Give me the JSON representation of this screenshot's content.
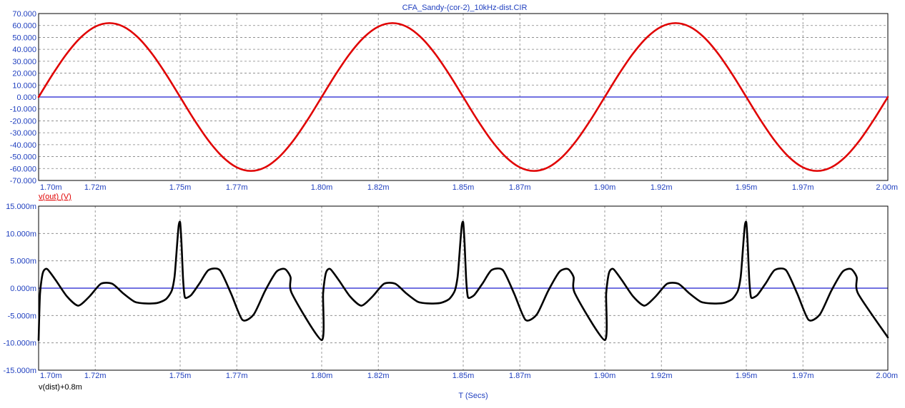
{
  "window": {
    "title": "CFA_Sandy-(cor-2)_10kHz-dist.CIR"
  },
  "colors": {
    "axis_text": "#1f3fbf",
    "grid": "#808080",
    "zero_line": "#1f1fcf",
    "frame": "#000000"
  },
  "chart_data": [
    {
      "type": "line",
      "title": "CFA_Sandy-(cor-2)_10kHz-dist.CIR",
      "xlabel": "",
      "ylabel": "v(out) (V)",
      "xlim": [
        0.0017,
        0.002
      ],
      "ylim": [
        -70,
        70
      ],
      "x_ticks": [
        0.0017,
        0.00172,
        0.00175,
        0.00177,
        0.0018,
        0.00182,
        0.00185,
        0.00187,
        0.0019,
        0.00192,
        0.00195,
        0.00197,
        0.002
      ],
      "x_tick_labels": [
        "1.70m",
        "1.72m",
        "1.75m",
        "1.77m",
        "1.80m",
        "1.82m",
        "1.85m",
        "1.87m",
        "1.90m",
        "1.92m",
        "1.95m",
        "1.97m",
        "2.00m"
      ],
      "y_ticks": [
        70,
        60,
        50,
        40,
        30,
        20,
        10,
        0,
        -10,
        -20,
        -30,
        -40,
        -50,
        -60,
        -70
      ],
      "y_tick_labels": [
        "70.000",
        "60.000",
        "50.000",
        "40.000",
        "30.000",
        "20.000",
        "10.000",
        "0.000",
        "-10.000",
        "-20.000",
        "-30.000",
        "-40.000",
        "-50.000",
        "-60.000",
        "-70.000"
      ],
      "grid": true,
      "legend": "none",
      "series": [
        {
          "name": "v(out) (V)",
          "color": "#e00000",
          "x": [
            0.0017,
            0.001705,
            0.00171,
            0.001715,
            0.00172,
            0.001725,
            0.00173,
            0.001735,
            0.00174,
            0.001745,
            0.00175,
            0.001755,
            0.00176,
            0.001765,
            0.00177,
            0.001775,
            0.00178,
            0.001785,
            0.00179,
            0.001795,
            0.0018,
            0.001805,
            0.00181,
            0.001815,
            0.00182,
            0.001825,
            0.00183,
            0.001835,
            0.00184,
            0.001845,
            0.00185,
            0.001855,
            0.00186,
            0.001865,
            0.00187,
            0.001875,
            0.00188,
            0.001885,
            0.00189,
            0.001895,
            0.0019,
            0.001905,
            0.00191,
            0.001915,
            0.00192,
            0.001925,
            0.00193,
            0.001935,
            0.00194,
            0.001945,
            0.00195,
            0.001955,
            0.00196,
            0.001965,
            0.00197,
            0.001975,
            0.00198,
            0.001985,
            0.00199,
            0.001995,
            0.002
          ],
          "y": [
            0,
            19.2,
            36.5,
            50.2,
            59.0,
            62.0,
            59.0,
            50.2,
            36.5,
            19.2,
            0,
            -19.2,
            -36.5,
            -50.2,
            -59.0,
            -62.0,
            -59.0,
            -50.2,
            -36.5,
            -19.2,
            0,
            19.2,
            36.5,
            50.2,
            59.0,
            62.0,
            59.0,
            50.2,
            36.5,
            19.2,
            0,
            -19.2,
            -36.5,
            -50.2,
            -59.0,
            -62.0,
            -59.0,
            -50.2,
            -36.5,
            -19.2,
            0,
            19.2,
            36.5,
            50.2,
            59.0,
            62.0,
            59.0,
            50.2,
            36.5,
            19.2,
            0,
            -19.2,
            -36.5,
            -50.2,
            -59.0,
            -62.0,
            -59.0,
            -50.2,
            -36.5,
            -19.2,
            0
          ]
        }
      ]
    },
    {
      "type": "line",
      "title": "",
      "xlabel": "T (Secs)",
      "ylabel": "v(dist)+0.8m",
      "xlim": [
        0.0017,
        0.002
      ],
      "ylim": [
        -0.015,
        0.015
      ],
      "x_ticks": [
        0.0017,
        0.00172,
        0.00175,
        0.00177,
        0.0018,
        0.00182,
        0.00185,
        0.00187,
        0.0019,
        0.00192,
        0.00195,
        0.00197,
        0.002
      ],
      "x_tick_labels": [
        "1.70m",
        "1.72m",
        "1.75m",
        "1.77m",
        "1.80m",
        "1.82m",
        "1.85m",
        "1.87m",
        "1.90m",
        "1.92m",
        "1.95m",
        "1.97m",
        "2.00m"
      ],
      "y_ticks": [
        0.015,
        0.01,
        0.005,
        0,
        -0.005,
        -0.01,
        -0.015
      ],
      "y_tick_labels": [
        "15.000m",
        "10.000m",
        "5.000m",
        "0.000m",
        "-5.000m",
        "-10.000m",
        "-15.000m"
      ],
      "grid": true,
      "legend": "none",
      "series": [
        {
          "name": "v(dist)+0.8m",
          "color": "#000000",
          "x": [
            0.0017,
            0.0017005,
            0.0017015,
            0.001703,
            0.001706,
            0.00171,
            0.001714,
            0.001718,
            0.001722,
            0.001726,
            0.00173,
            0.001734,
            0.001738,
            0.001742,
            0.001745,
            0.001747,
            0.001748,
            0.0017485,
            0.001749,
            0.0017495,
            0.00175,
            0.0017505,
            0.001751,
            0.0017515,
            0.001752,
            0.001754,
            0.001757,
            0.00176,
            0.001764,
            0.001768,
            0.001772,
            0.001776,
            0.00178,
            0.001784,
            0.001787,
            0.001789,
            0.0017895,
            0.0018,
            0.0018005,
            0.0018015,
            0.001803,
            0.001806,
            0.00181,
            0.001814,
            0.001818,
            0.001822,
            0.001826,
            0.00183,
            0.001834,
            0.001838,
            0.001842,
            0.001845,
            0.001847,
            0.001848,
            0.0018485,
            0.001849,
            0.0018495,
            0.00185,
            0.0018505,
            0.001851,
            0.0018515,
            0.001852,
            0.001854,
            0.001857,
            0.00186,
            0.001864,
            0.001868,
            0.001872,
            0.001876,
            0.00188,
            0.001884,
            0.001887,
            0.001889,
            0.0018895,
            0.0019,
            0.0019005,
            0.0019015,
            0.001903,
            0.001906,
            0.00191,
            0.001914,
            0.001918,
            0.001922,
            0.001926,
            0.00193,
            0.001934,
            0.001938,
            0.001942,
            0.001945,
            0.001947,
            0.001948,
            0.0019485,
            0.001949,
            0.0019495,
            0.00195,
            0.0019505,
            0.001951,
            0.0019515,
            0.001952,
            0.001954,
            0.001957,
            0.00196,
            0.001964,
            0.001968,
            0.001972,
            0.001976,
            0.00198,
            0.001984,
            0.001987,
            0.001989,
            0.0019895,
            0.002
          ],
          "y": [
            -0.0095,
            -0.001,
            0.0028,
            0.0035,
            0.0015,
            -0.0015,
            -0.0032,
            -0.0015,
            0.0008,
            0.0008,
            -0.001,
            -0.0025,
            -0.0028,
            -0.0027,
            -0.002,
            -0.0005,
            0.002,
            0.005,
            0.0085,
            0.0115,
            0.012,
            0.008,
            0.002,
            -0.0012,
            -0.0018,
            -0.0012,
            0.001,
            0.0033,
            0.0033,
            -0.001,
            -0.0058,
            -0.0048,
            -0.0005,
            0.003,
            0.0035,
            0.002,
            -0.001,
            -0.0095,
            -0.001,
            0.0028,
            0.0035,
            0.0015,
            -0.0015,
            -0.0032,
            -0.0015,
            0.0008,
            0.0008,
            -0.001,
            -0.0025,
            -0.0028,
            -0.0027,
            -0.002,
            -0.0005,
            0.002,
            0.005,
            0.0085,
            0.0115,
            0.012,
            0.008,
            0.002,
            -0.0012,
            -0.0018,
            -0.0012,
            0.001,
            0.0033,
            0.0033,
            -0.001,
            -0.0058,
            -0.0048,
            -0.0005,
            0.003,
            0.0035,
            0.002,
            -0.001,
            -0.0095,
            -0.001,
            0.0028,
            0.0035,
            0.0015,
            -0.0015,
            -0.0032,
            -0.0015,
            0.0008,
            0.0008,
            -0.001,
            -0.0025,
            -0.0028,
            -0.0027,
            -0.002,
            -0.0005,
            0.002,
            0.005,
            0.0085,
            0.0115,
            0.012,
            0.008,
            0.002,
            -0.0012,
            -0.0018,
            -0.0012,
            0.001,
            0.0033,
            0.0033,
            -0.001,
            -0.0058,
            -0.0048,
            -0.0005,
            0.003,
            0.0035,
            0.002,
            -0.001,
            -0.009
          ]
        }
      ]
    }
  ]
}
